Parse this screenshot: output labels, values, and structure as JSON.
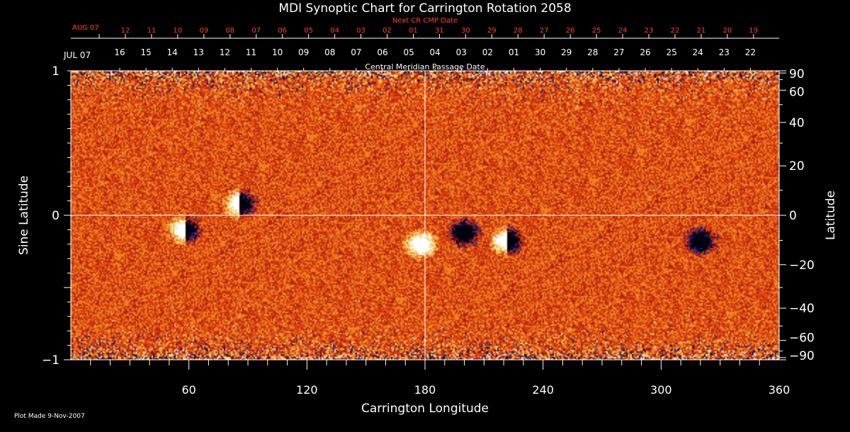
{
  "chart_data": {
    "type": "heatmap",
    "title": "MDI Synoptic Chart for Carrington Rotation 2058",
    "xlabel": "Carrington Longitude",
    "ylabel_left": "Sine Latitude",
    "ylabel_right": "Latitude",
    "xlim": [
      0,
      360
    ],
    "ylim": [
      -1,
      1
    ],
    "x_ticks": [
      60,
      120,
      180,
      240,
      300,
      360
    ],
    "y_ticks_left": [
      "1",
      "0",
      "−1"
    ],
    "y_ticks_right": [
      "90",
      "60",
      "40",
      "20",
      "0",
      "−20",
      "−40",
      "−60",
      "−90"
    ],
    "top_axis_label": "Central Meridian Passage Date",
    "top_axis_start": "JUL 07",
    "top_axis_dates": [
      "16",
      "15",
      "14",
      "13",
      "12",
      "11",
      "10",
      "09",
      "08",
      "07",
      "06",
      "05",
      "04",
      "03",
      "02",
      "01",
      "30",
      "29",
      "28",
      "27",
      "26",
      "25",
      "24",
      "23",
      "22"
    ],
    "next_cr_label": "Next CR CMP Date",
    "next_cr_start": "AUG 07",
    "next_cr_dates": [
      "12",
      "11",
      "10",
      "09",
      "08",
      "07",
      "06",
      "05",
      "04",
      "03",
      "02",
      "01",
      "31",
      "30",
      "29",
      "28",
      "27",
      "26",
      "25",
      "24",
      "23",
      "22",
      "21",
      "20",
      "19"
    ],
    "colormap": [
      "#ffffff",
      "#ffd060",
      "#f08020",
      "#d84010",
      "#b02010",
      "#202080",
      "#000010"
    ],
    "active_regions": [
      {
        "lon": 58,
        "sinlat": -0.1,
        "polarity": "mixed"
      },
      {
        "lon": 86,
        "sinlat": 0.08,
        "polarity": "mixed"
      },
      {
        "lon": 178,
        "sinlat": -0.2,
        "polarity": "positive"
      },
      {
        "lon": 200,
        "sinlat": -0.12,
        "polarity": "negative"
      },
      {
        "lon": 222,
        "sinlat": -0.18,
        "polarity": "mixed"
      },
      {
        "lon": 320,
        "sinlat": -0.18,
        "polarity": "negative"
      }
    ]
  },
  "footer": {
    "plot_made": "Plot Made  9-Nov-2007"
  },
  "colors": {
    "background": "#000000",
    "axis": "#ffffff",
    "next_cr": "#ff4020"
  }
}
